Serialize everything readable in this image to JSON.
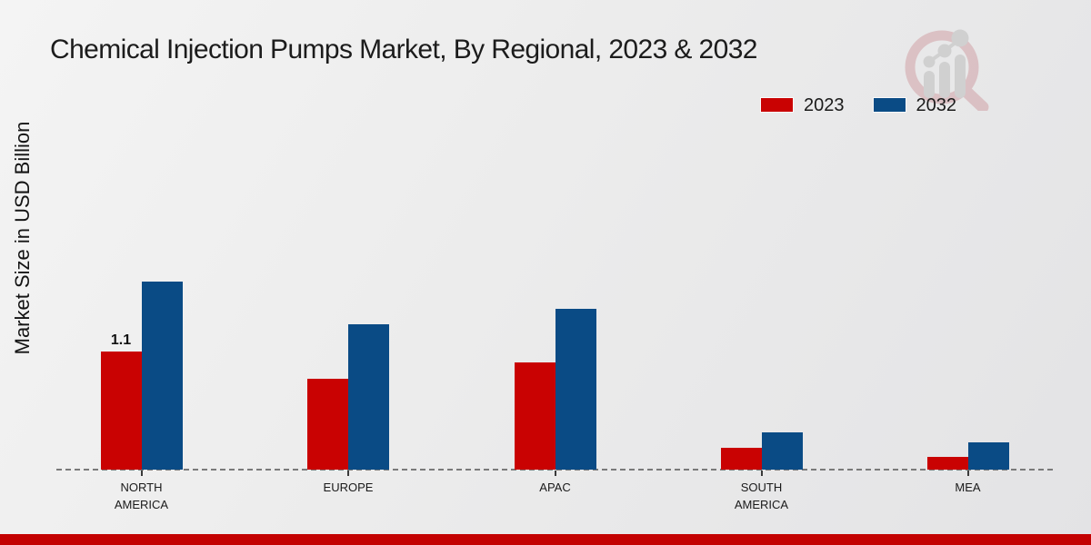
{
  "title": "Chemical Injection Pumps Market, By Regional, 2023 & 2032",
  "y_axis_label": "Market Size in USD Billion",
  "legend": {
    "items": [
      {
        "label": "2023",
        "color": "#c90202"
      },
      {
        "label": "2032",
        "color": "#0a4b85"
      }
    ]
  },
  "watermark": {
    "name": "market-research-magnifier-logo",
    "ring_color": "#cf9ba0",
    "bars_color": "#b9b9b9"
  },
  "footer": {
    "bar_color": "#c30101"
  },
  "chart_data": {
    "type": "bar",
    "title": "Chemical Injection Pumps Market, By Regional, 2023 & 2032",
    "ylabel": "Market Size in USD Billion",
    "unit": "USD Billion",
    "categories": [
      "North America",
      "Europe",
      "APAC",
      "South America",
      "MEA"
    ],
    "category_display_labels": [
      [
        "NORTH",
        "AMERICA"
      ],
      [
        "EUROPE"
      ],
      [
        "APAC"
      ],
      [
        "SOUTH",
        "AMERICA"
      ],
      [
        "MEA"
      ]
    ],
    "series": [
      {
        "name": "2023",
        "color": "#c90202",
        "values": [
          1.1,
          0.85,
          1.0,
          0.2,
          0.12
        ]
      },
      {
        "name": "2032",
        "color": "#0a4b85",
        "values": [
          1.75,
          1.35,
          1.5,
          0.35,
          0.25
        ]
      }
    ],
    "annotations": [
      {
        "text": "1.1",
        "category_index": 0,
        "series_index": 0
      }
    ],
    "legend_position": "top-right",
    "grid": false,
    "baseline_style": "dashed",
    "ylim": [
      0,
      2.0
    ]
  }
}
